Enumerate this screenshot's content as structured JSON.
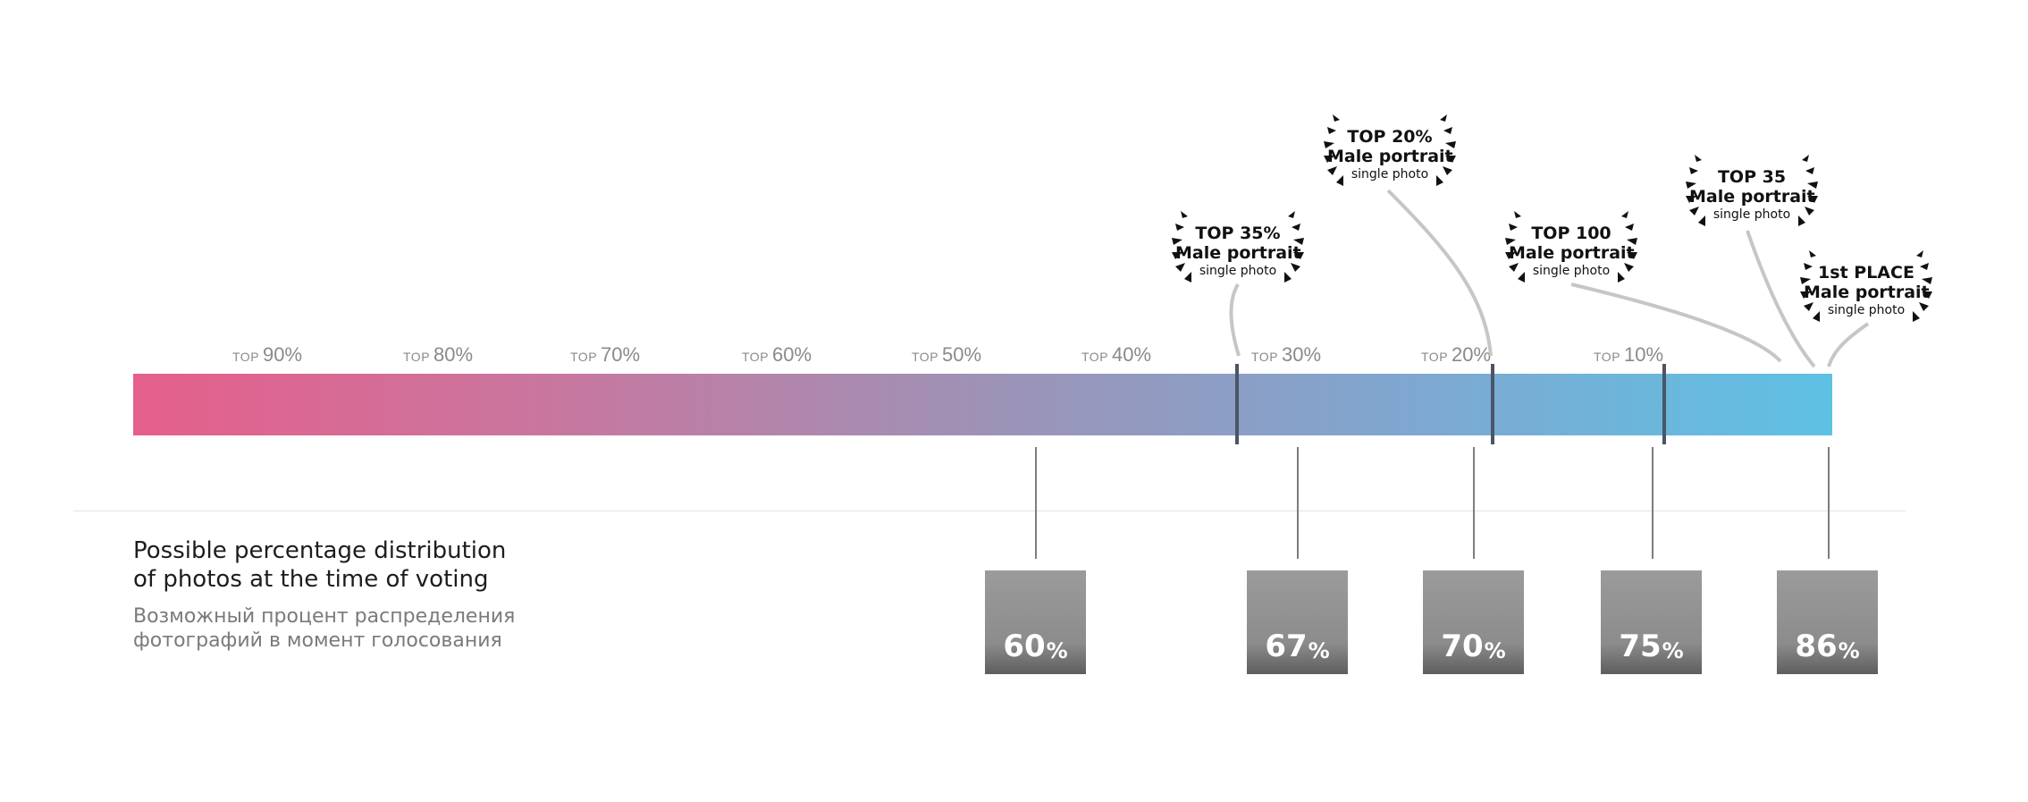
{
  "ticks": [
    {
      "prefix": "TOP",
      "value": "90%"
    },
    {
      "prefix": "TOP",
      "value": "80%"
    },
    {
      "prefix": "TOP",
      "value": "70%"
    },
    {
      "prefix": "TOP",
      "value": "60%"
    },
    {
      "prefix": "TOP",
      "value": "50%"
    },
    {
      "prefix": "TOP",
      "value": "40%"
    },
    {
      "prefix": "TOP",
      "value": "30%"
    },
    {
      "prefix": "TOP",
      "value": "20%"
    },
    {
      "prefix": "TOP",
      "value": "10%"
    }
  ],
  "colors": {
    "gradient_start": "#e55f8b",
    "gradient_end": "#5ec1e4",
    "box": "#8c8c8c",
    "divider": "#4a5566"
  },
  "awards": [
    {
      "line1": "TOP 35%",
      "line2": "Male portrait",
      "line3": "single photo",
      "icon": "laurel-wreath-icon"
    },
    {
      "line1": "TOP 20%",
      "line2": "Male portrait",
      "line3": "single photo",
      "icon": "laurel-wreath-icon"
    },
    {
      "line1": "TOP 100",
      "line2": "Male portrait",
      "line3": "single photo",
      "icon": "laurel-wreath-icon"
    },
    {
      "line1": "TOP 35",
      "line2": "Male portrait",
      "line3": "single photo",
      "icon": "laurel-wreath-icon"
    },
    {
      "line1": "1st PLACE",
      "line2": "Male portrait",
      "line3": "single photo",
      "icon": "laurel-wreath-icon"
    }
  ],
  "values": [
    {
      "number": "60",
      "unit": "%"
    },
    {
      "number": "67",
      "unit": "%"
    },
    {
      "number": "70",
      "unit": "%"
    },
    {
      "number": "75",
      "unit": "%"
    },
    {
      "number": "86",
      "unit": "%"
    }
  ],
  "legend": {
    "en_line1": "Possible percentage distribution",
    "en_line2": "of photos at the time of voting",
    "ru_line1": "Возможный процент распределения",
    "ru_line2": "фотографий в момент голосования"
  }
}
